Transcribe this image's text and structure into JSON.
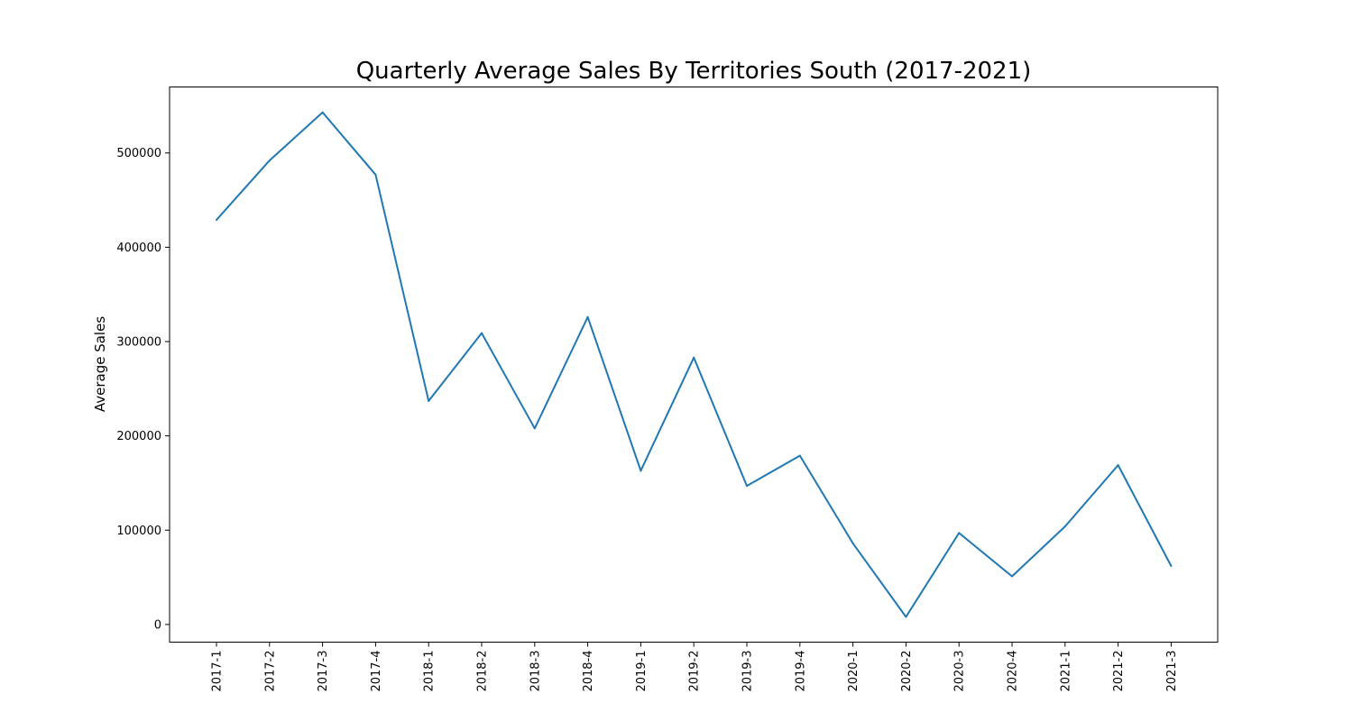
{
  "chart_data": {
    "type": "line",
    "title": "Quarterly Average Sales By Territories South (2017-2021)",
    "xlabel": "",
    "ylabel": "Average Sales",
    "categories": [
      "2017-1",
      "2017-2",
      "2017-3",
      "2017-4",
      "2018-1",
      "2018-2",
      "2018-3",
      "2018-4",
      "2019-1",
      "2019-2",
      "2019-3",
      "2019-4",
      "2020-1",
      "2020-2",
      "2020-3",
      "2020-4",
      "2021-1",
      "2021-2",
      "2021-3"
    ],
    "series": [
      {
        "values": [
          429000,
          492000,
          543000,
          477000,
          237000,
          309000,
          208000,
          326000,
          163000,
          283000,
          147000,
          179000,
          86000,
          8000,
          97000,
          51000,
          104000,
          169000,
          62000
        ],
        "color": "#1f77b4"
      }
    ],
    "yticks": [
      0,
      100000,
      200000,
      300000,
      400000,
      500000
    ],
    "ytick_labels": [
      "0",
      "100000",
      "200000",
      "300000",
      "400000",
      "500000"
    ],
    "ylim": [
      -18750,
      570000
    ],
    "grid": false,
    "legend": "none"
  }
}
